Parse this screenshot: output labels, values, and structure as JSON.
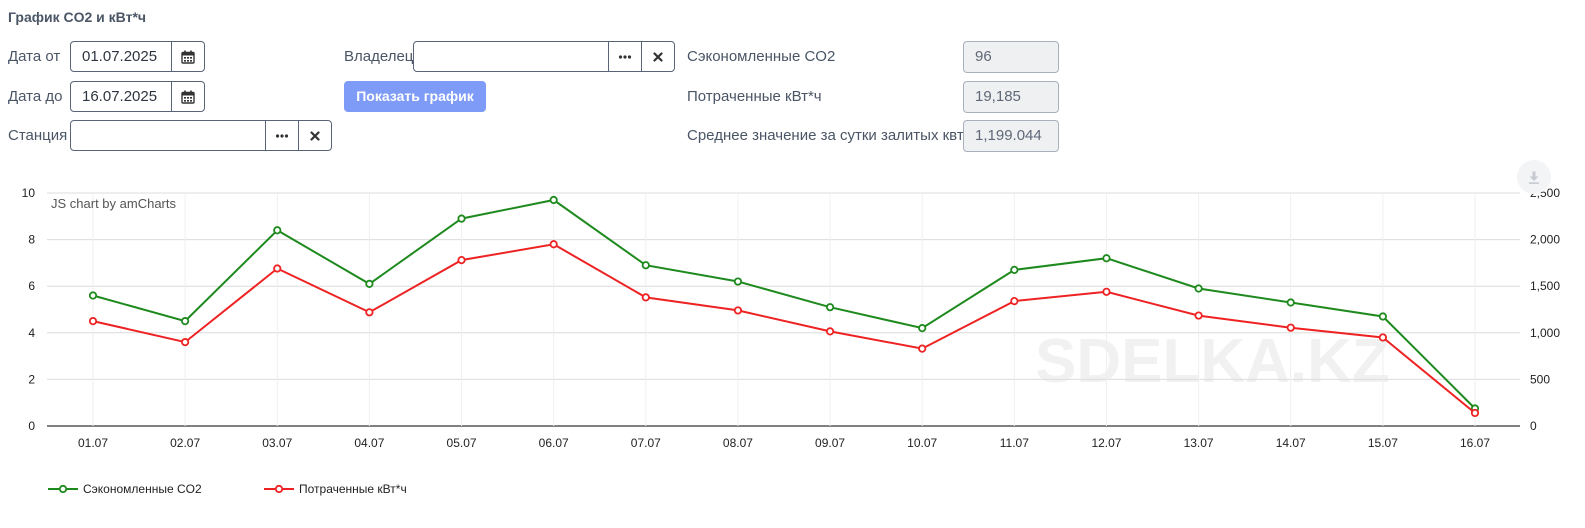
{
  "form": {
    "title": "График CO2 и кВт*ч",
    "date_from_label": "Дата от",
    "date_from_value": "01.07.2025",
    "date_to_label": "Дата до",
    "date_to_value": "16.07.2025",
    "station_label": "Станция",
    "station_value": "",
    "owner_label": "Владелец",
    "owner_value": "",
    "show_button": "Показать график",
    "saved_co2_label": "Сэкономленные CO2",
    "saved_co2_value": "96",
    "spent_kwh_label": "Потраченные кВт*ч",
    "spent_kwh_value": "19,185",
    "avg_label": "Среднее значение за сутки залитых квт.ч",
    "avg_value": "1,199.044"
  },
  "icons": {
    "calendar": "calendar-icon",
    "ellipsis": "ellipsis-icon",
    "clear": "close-icon",
    "download": "download-icon"
  },
  "chart_data": {
    "type": "line",
    "credit": "JS chart by amCharts",
    "watermark": "SDELKA.KZ",
    "categories": [
      "01.07",
      "02.07",
      "03.07",
      "04.07",
      "05.07",
      "06.07",
      "07.07",
      "08.07",
      "09.07",
      "10.07",
      "11.07",
      "12.07",
      "13.07",
      "14.07",
      "15.07",
      "16.07"
    ],
    "y_left": {
      "min": 0,
      "max": 10,
      "ticks": [
        "0",
        "2",
        "4",
        "6",
        "8",
        "10"
      ]
    },
    "y_right": {
      "min": 0,
      "max": 2500,
      "ticks": [
        "0",
        "500",
        "1,000",
        "1,500",
        "2,000",
        "2,500"
      ]
    },
    "grid": true,
    "legend_position": "bottom-left",
    "series": [
      {
        "name": "Сэкономленные CO2",
        "axis": "left",
        "color": "#1e8a1e",
        "values": [
          5.6,
          4.5,
          8.4,
          6.1,
          8.9,
          9.7,
          6.9,
          6.2,
          5.1,
          4.2,
          6.7,
          7.2,
          5.9,
          5.3,
          4.7,
          0.75
        ]
      },
      {
        "name": "Потраченные кВт*ч",
        "axis": "right",
        "color": "#ee2222",
        "values": [
          1125,
          900,
          1690,
          1220,
          1780,
          1950,
          1380,
          1240,
          1015,
          830,
          1340,
          1440,
          1185,
          1055,
          950,
          140
        ]
      }
    ]
  }
}
